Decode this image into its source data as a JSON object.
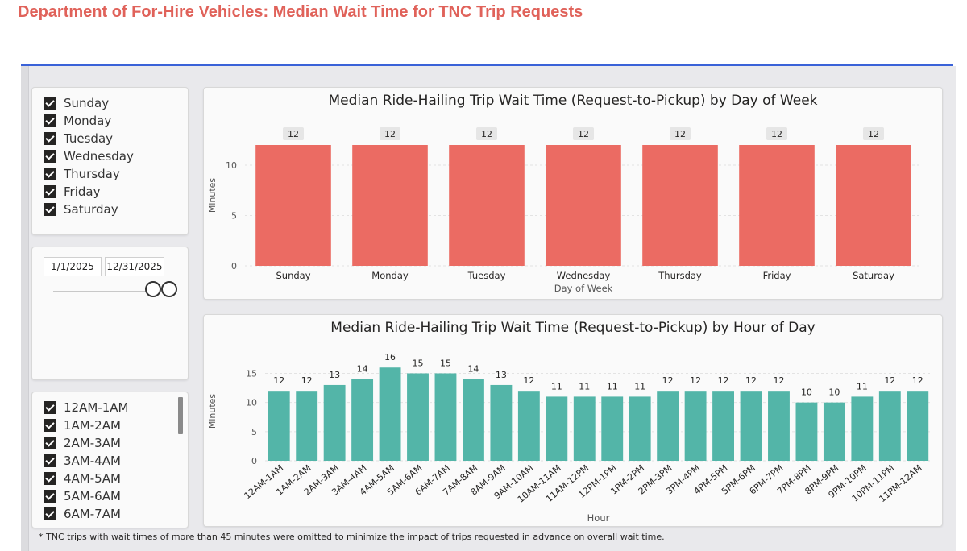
{
  "page": {
    "title": "Department of For-Hire Vehicles: Median Wait Time for TNC Trip Requests",
    "footnote": "* TNC trips with wait times of more than 45 minutes were omitted to minimize the impact of trips requested in advance on overall wait time."
  },
  "colors": {
    "title": "#e0625a",
    "day_bar": "#eb6b63",
    "hour_bar": "#53b5a8",
    "accent_rule": "#3a62d8"
  },
  "day_slicer": {
    "items": [
      {
        "label": "Sunday",
        "checked": true
      },
      {
        "label": "Monday",
        "checked": true
      },
      {
        "label": "Tuesday",
        "checked": true
      },
      {
        "label": "Wednesday",
        "checked": true
      },
      {
        "label": "Thursday",
        "checked": true
      },
      {
        "label": "Friday",
        "checked": true
      },
      {
        "label": "Saturday",
        "checked": true
      }
    ]
  },
  "date_slicer": {
    "start": "1/1/2025",
    "end": "12/31/2025"
  },
  "hour_slicer": {
    "items": [
      {
        "label": "12AM-1AM",
        "checked": true
      },
      {
        "label": "1AM-2AM",
        "checked": true
      },
      {
        "label": "2AM-3AM",
        "checked": true
      },
      {
        "label": "3AM-4AM",
        "checked": true
      },
      {
        "label": "4AM-5AM",
        "checked": true
      },
      {
        "label": "5AM-6AM",
        "checked": true
      },
      {
        "label": "6AM-7AM",
        "checked": true
      }
    ]
  },
  "chart_data": [
    {
      "type": "bar",
      "title": "Median Ride-Hailing Trip Wait Time (Request-to-Pickup) by Day of Week",
      "xlabel": "Day of Week",
      "ylabel": "Minutes",
      "categories": [
        "Sunday",
        "Monday",
        "Tuesday",
        "Wednesday",
        "Thursday",
        "Friday",
        "Saturday"
      ],
      "values": [
        12,
        12,
        12,
        12,
        12,
        12,
        12
      ],
      "yticks": [
        0,
        5,
        10
      ],
      "ylim": [
        0,
        14
      ],
      "grid": true,
      "data_labels": true
    },
    {
      "type": "bar",
      "title": "Median Ride-Hailing Trip Wait Time (Request-to-Pickup) by Hour of Day",
      "xlabel": "Hour",
      "ylabel": "Minutes",
      "categories": [
        "12AM-1AM",
        "1AM-2AM",
        "2AM-3AM",
        "3AM-4AM",
        "4AM-5AM",
        "5AM-6AM",
        "6AM-7AM",
        "7AM-8AM",
        "8AM-9AM",
        "9AM-10AM",
        "10AM-11AM",
        "11AM-12PM",
        "12PM-1PM",
        "1PM-2PM",
        "2PM-3PM",
        "3PM-4PM",
        "4PM-5PM",
        "5PM-6PM",
        "6PM-7PM",
        "7PM-8PM",
        "8PM-9PM",
        "9PM-10PM",
        "10PM-11PM",
        "11PM-12AM"
      ],
      "values": [
        12,
        12,
        13,
        14,
        16,
        15,
        15,
        14,
        13,
        12,
        11,
        11,
        11,
        11,
        12,
        12,
        12,
        12,
        12,
        10,
        10,
        11,
        12,
        12
      ],
      "yticks": [
        0,
        5,
        10,
        15
      ],
      "ylim": [
        0,
        17
      ],
      "grid": true,
      "data_labels": true
    }
  ]
}
